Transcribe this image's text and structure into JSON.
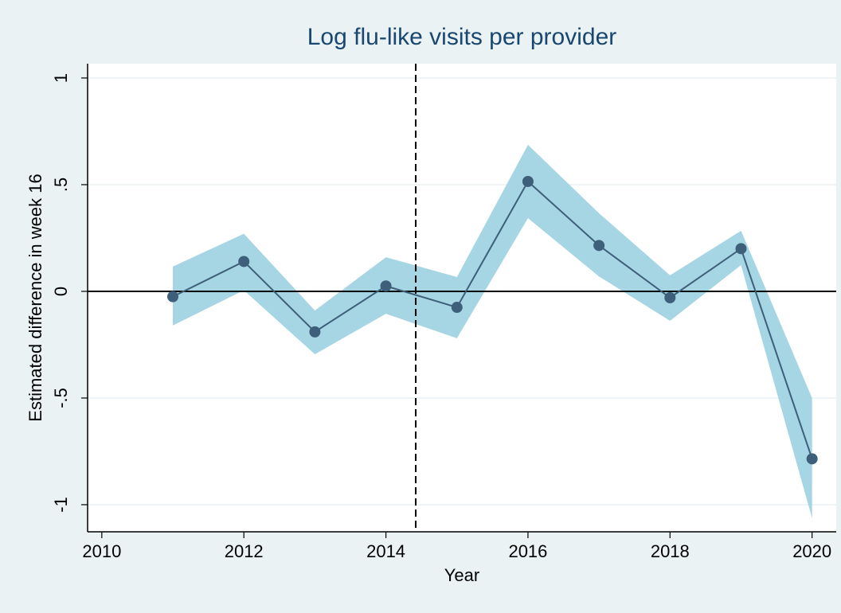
{
  "chart_data": {
    "type": "line",
    "title": "Log flu-like visits per provider",
    "xlabel": "Year",
    "ylabel": "Estimated difference in week 16",
    "x": [
      2011,
      2012,
      2013,
      2014,
      2015,
      2016,
      2017,
      2018,
      2019,
      2020
    ],
    "values": [
      -0.025,
      0.14,
      -0.19,
      0.025,
      -0.075,
      0.515,
      0.215,
      -0.03,
      0.2,
      -0.785
    ],
    "ci_upper": [
      0.116,
      0.27,
      -0.09,
      0.16,
      0.067,
      0.687,
      0.366,
      0.075,
      0.284,
      -0.5
    ],
    "ci_lower": [
      -0.16,
      0.005,
      -0.295,
      -0.105,
      -0.22,
      0.343,
      0.07,
      -0.138,
      0.123,
      -1.063
    ],
    "color": "#3e5f7a",
    "band_color": "#a6d5e3",
    "xline": 2014.42,
    "yline": 0,
    "xlim": [
      2009.8,
      2020.34
    ],
    "ylim": [
      -1.127,
      1.067
    ],
    "xticks": [
      2010,
      2012,
      2014,
      2016,
      2018,
      2020
    ],
    "yticks": [
      -1,
      {
        "value": -0.5,
        "label": "-.5"
      },
      0,
      {
        "value": 0.5,
        "label": ".5"
      },
      1
    ],
    "grid": true
  }
}
